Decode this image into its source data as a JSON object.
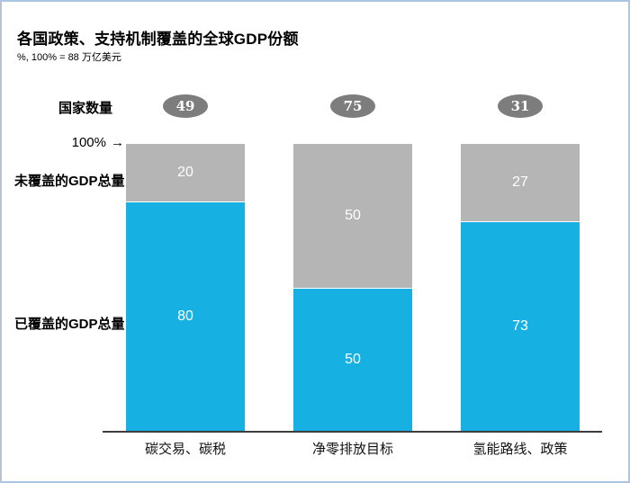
{
  "chart_data": {
    "type": "bar",
    "stacked": true,
    "title": "各国政策、支持机制覆盖的全球GDP份额",
    "subtitle": "%, 100% = 88 万亿美元",
    "categories": [
      "碳交易、碳税",
      "净零排放目标",
      "氢能路线、政策"
    ],
    "series": [
      {
        "name": "已覆盖的GDP总量",
        "values": [
          80,
          50,
          73
        ],
        "color": "#16b1e2"
      },
      {
        "name": "未覆盖的GDP总量",
        "values": [
          20,
          50,
          27
        ],
        "color": "#b5b5b5"
      }
    ],
    "country_counts": {
      "label": "国家数量",
      "values": [
        49,
        75,
        31
      ],
      "badge_color": "#7d7d7d"
    },
    "axis_top_label": "100%",
    "axis_top_arrow": "→",
    "ylim": [
      0,
      100
    ],
    "grid": false,
    "legend_position": "left",
    "value_label_color": "#ffffff",
    "axis_line_color": "#3d3d3d"
  }
}
